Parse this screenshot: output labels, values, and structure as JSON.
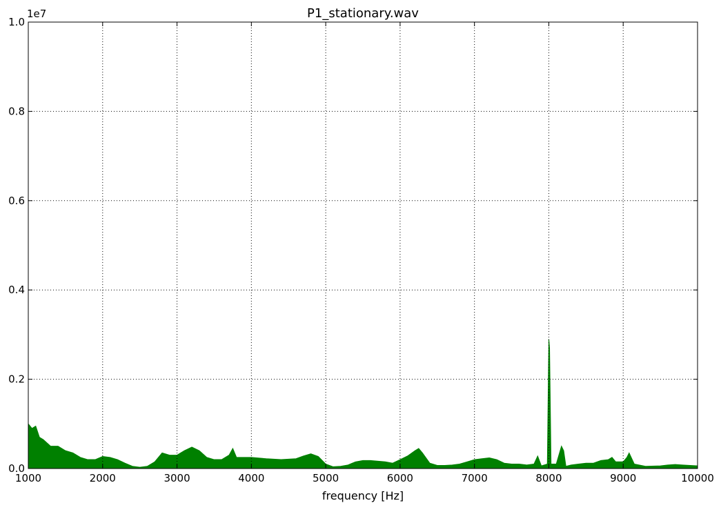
{
  "chart_data": {
    "type": "area",
    "title": "P1_stationary.wav",
    "xlabel": "frequency [Hz]",
    "y_offset_text": "1e7",
    "x": [
      1000,
      1050,
      1100,
      1150,
      1200,
      1300,
      1400,
      1500,
      1600,
      1700,
      1800,
      1900,
      2000,
      2100,
      2200,
      2300,
      2400,
      2500,
      2600,
      2700,
      2800,
      2900,
      3000,
      3100,
      3200,
      3300,
      3400,
      3500,
      3600,
      3700,
      3750,
      3800,
      3900,
      4000,
      4200,
      4400,
      4600,
      4700,
      4800,
      4900,
      5000,
      5100,
      5200,
      5300,
      5400,
      5500,
      5600,
      5800,
      5900,
      6000,
      6100,
      6200,
      6250,
      6300,
      6400,
      6500,
      6600,
      6700,
      6800,
      6900,
      7000,
      7100,
      7200,
      7300,
      7400,
      7500,
      7600,
      7700,
      7800,
      7850,
      7900,
      7980,
      8000,
      8010,
      8030,
      8100,
      8170,
      8200,
      8230,
      8300,
      8400,
      8500,
      8600,
      8700,
      8800,
      8850,
      8900,
      9000,
      9050,
      9080,
      9150,
      9300,
      9500,
      9600,
      9700,
      9800,
      10000
    ],
    "values": [
      0.1,
      0.09,
      0.095,
      0.07,
      0.065,
      0.05,
      0.05,
      0.04,
      0.035,
      0.025,
      0.02,
      0.02,
      0.027,
      0.025,
      0.02,
      0.012,
      0.005,
      0.003,
      0.005,
      0.015,
      0.035,
      0.03,
      0.03,
      0.04,
      0.048,
      0.04,
      0.025,
      0.02,
      0.02,
      0.03,
      0.045,
      0.025,
      0.025,
      0.025,
      0.022,
      0.02,
      0.022,
      0.028,
      0.033,
      0.027,
      0.01,
      0.004,
      0.005,
      0.008,
      0.015,
      0.018,
      0.018,
      0.015,
      0.012,
      0.02,
      0.028,
      0.04,
      0.045,
      0.035,
      0.012,
      0.007,
      0.007,
      0.008,
      0.01,
      0.015,
      0.02,
      0.022,
      0.024,
      0.02,
      0.012,
      0.01,
      0.01,
      0.008,
      0.01,
      0.028,
      0.006,
      0.01,
      0.29,
      0.27,
      0.01,
      0.01,
      0.05,
      0.04,
      0.005,
      0.008,
      0.01,
      0.012,
      0.012,
      0.018,
      0.02,
      0.025,
      0.015,
      0.015,
      0.025,
      0.035,
      0.01,
      0.005,
      0.006,
      0.008,
      0.009,
      0.008,
      0.006
    ],
    "color": "#008000",
    "xlim": [
      1000,
      10000
    ],
    "xticks": [
      1000,
      2000,
      3000,
      4000,
      5000,
      6000,
      7000,
      8000,
      9000,
      10000
    ],
    "ylim": [
      0,
      1
    ],
    "yticks": [
      {
        "value": 0,
        "label": "0.0"
      },
      0.2,
      0.4,
      0.6,
      0.8,
      {
        "value": 1,
        "label": "1.0"
      }
    ],
    "grid": true
  }
}
